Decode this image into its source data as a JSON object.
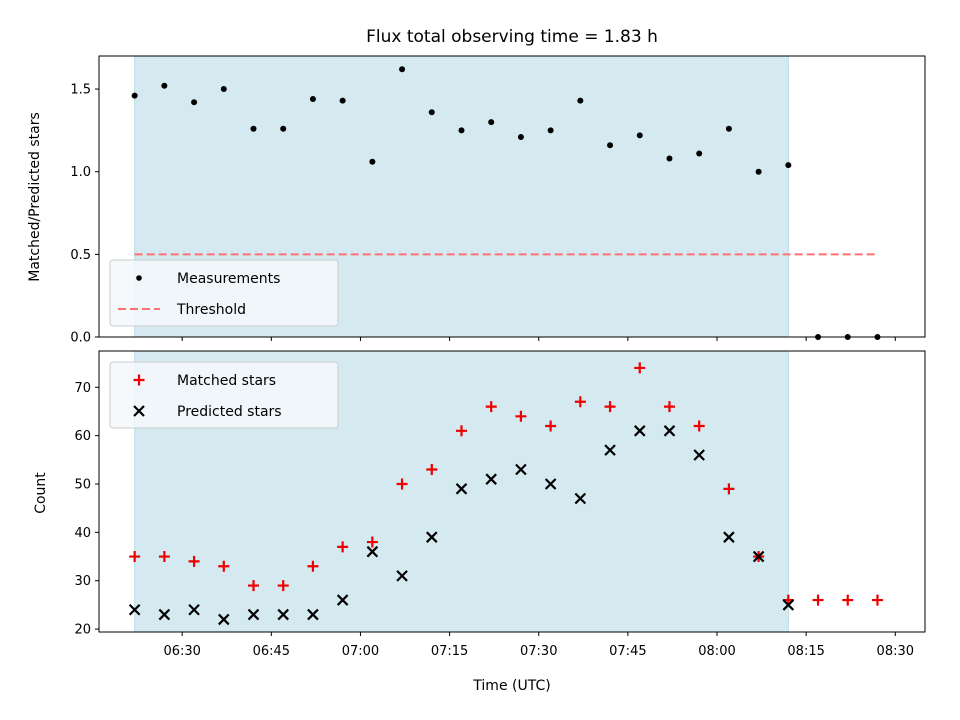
{
  "chart_data": [
    {
      "type": "scatter",
      "title": "Flux total observing time = 1.83 h",
      "xlabel": "",
      "ylabel": "Matched/Predicted stars",
      "ylim": [
        0,
        1.7
      ],
      "yticks": [
        "0.0",
        "0.5",
        "1.0",
        "1.5"
      ],
      "shaded_span": {
        "start": "06:22",
        "end": "08:12"
      },
      "legend_placement": "lower-left",
      "series": [
        {
          "name": "Measurements",
          "marker": "dot",
          "color": "#000000",
          "points": [
            {
              "x": "06:22",
              "y": 1.46
            },
            {
              "x": "06:27",
              "y": 1.52
            },
            {
              "x": "06:32",
              "y": 1.42
            },
            {
              "x": "06:37",
              "y": 1.5
            },
            {
              "x": "06:42",
              "y": 1.26
            },
            {
              "x": "06:47",
              "y": 1.26
            },
            {
              "x": "06:52",
              "y": 1.44
            },
            {
              "x": "06:57",
              "y": 1.43
            },
            {
              "x": "07:02",
              "y": 1.06
            },
            {
              "x": "07:07",
              "y": 1.62
            },
            {
              "x": "07:12",
              "y": 1.36
            },
            {
              "x": "07:17",
              "y": 1.25
            },
            {
              "x": "07:22",
              "y": 1.3
            },
            {
              "x": "07:27",
              "y": 1.21
            },
            {
              "x": "07:32",
              "y": 1.25
            },
            {
              "x": "07:37",
              "y": 1.43
            },
            {
              "x": "07:42",
              "y": 1.16
            },
            {
              "x": "07:47",
              "y": 1.22
            },
            {
              "x": "07:52",
              "y": 1.08
            },
            {
              "x": "07:57",
              "y": 1.11
            },
            {
              "x": "08:02",
              "y": 1.26
            },
            {
              "x": "08:07",
              "y": 1.0
            },
            {
              "x": "08:12",
              "y": 1.04
            },
            {
              "x": "08:17",
              "y": 0.0
            },
            {
              "x": "08:22",
              "y": 0.0
            },
            {
              "x": "08:27",
              "y": 0.0
            }
          ]
        },
        {
          "name": "Threshold",
          "marker": "dashed-line",
          "color": "#ff7070",
          "points": [
            {
              "x": "06:22",
              "y": 0.5
            },
            {
              "x": "08:27",
              "y": 0.5
            }
          ]
        }
      ]
    },
    {
      "type": "scatter",
      "title": "",
      "xlabel": "Time (UTC)",
      "ylabel": "Count",
      "ylim": [
        19.4,
        77.5
      ],
      "xlim": [
        "06:16",
        "08:35"
      ],
      "yticks": [
        "20",
        "30",
        "40",
        "50",
        "60",
        "70"
      ],
      "xticks": [
        "06:30",
        "06:45",
        "07:00",
        "07:15",
        "07:30",
        "07:45",
        "08:00",
        "08:15",
        "08:30"
      ],
      "shaded_span": {
        "start": "06:22",
        "end": "08:12"
      },
      "legend_placement": "upper-left",
      "series": [
        {
          "name": "Matched stars",
          "marker": "plus",
          "color": "#ee0000",
          "points": [
            {
              "x": "06:22",
              "y": 35
            },
            {
              "x": "06:27",
              "y": 35
            },
            {
              "x": "06:32",
              "y": 34
            },
            {
              "x": "06:37",
              "y": 33
            },
            {
              "x": "06:42",
              "y": 29
            },
            {
              "x": "06:47",
              "y": 29
            },
            {
              "x": "06:52",
              "y": 33
            },
            {
              "x": "06:57",
              "y": 37
            },
            {
              "x": "07:02",
              "y": 38
            },
            {
              "x": "07:07",
              "y": 50
            },
            {
              "x": "07:12",
              "y": 53
            },
            {
              "x": "07:17",
              "y": 61
            },
            {
              "x": "07:22",
              "y": 66
            },
            {
              "x": "07:27",
              "y": 64
            },
            {
              "x": "07:32",
              "y": 62
            },
            {
              "x": "07:37",
              "y": 67
            },
            {
              "x": "07:42",
              "y": 66
            },
            {
              "x": "07:47",
              "y": 74
            },
            {
              "x": "07:52",
              "y": 66
            },
            {
              "x": "07:57",
              "y": 62
            },
            {
              "x": "08:02",
              "y": 49
            },
            {
              "x": "08:07",
              "y": 35
            },
            {
              "x": "08:12",
              "y": 26
            },
            {
              "x": "08:17",
              "y": 26
            },
            {
              "x": "08:22",
              "y": 26
            },
            {
              "x": "08:27",
              "y": 26
            }
          ]
        },
        {
          "name": "Predicted stars",
          "marker": "x",
          "color": "#000000",
          "points": [
            {
              "x": "06:22",
              "y": 24
            },
            {
              "x": "06:27",
              "y": 23
            },
            {
              "x": "06:32",
              "y": 24
            },
            {
              "x": "06:37",
              "y": 22
            },
            {
              "x": "06:42",
              "y": 23
            },
            {
              "x": "06:47",
              "y": 23
            },
            {
              "x": "06:52",
              "y": 23
            },
            {
              "x": "06:57",
              "y": 26
            },
            {
              "x": "07:02",
              "y": 36
            },
            {
              "x": "07:07",
              "y": 31
            },
            {
              "x": "07:12",
              "y": 39
            },
            {
              "x": "07:17",
              "y": 49
            },
            {
              "x": "07:22",
              "y": 51
            },
            {
              "x": "07:27",
              "y": 53
            },
            {
              "x": "07:32",
              "y": 50
            },
            {
              "x": "07:37",
              "y": 47
            },
            {
              "x": "07:42",
              "y": 57
            },
            {
              "x": "07:47",
              "y": 61
            },
            {
              "x": "07:52",
              "y": 61
            },
            {
              "x": "07:57",
              "y": 56
            },
            {
              "x": "08:02",
              "y": 39
            },
            {
              "x": "08:07",
              "y": 35
            },
            {
              "x": "08:12",
              "y": 25
            }
          ]
        }
      ]
    }
  ],
  "colors": {
    "shade": "#d4eaf0",
    "shade_edge": "#b8dce6",
    "legend_bg": "#f4f8fa",
    "legend_border": "#cccccc"
  }
}
